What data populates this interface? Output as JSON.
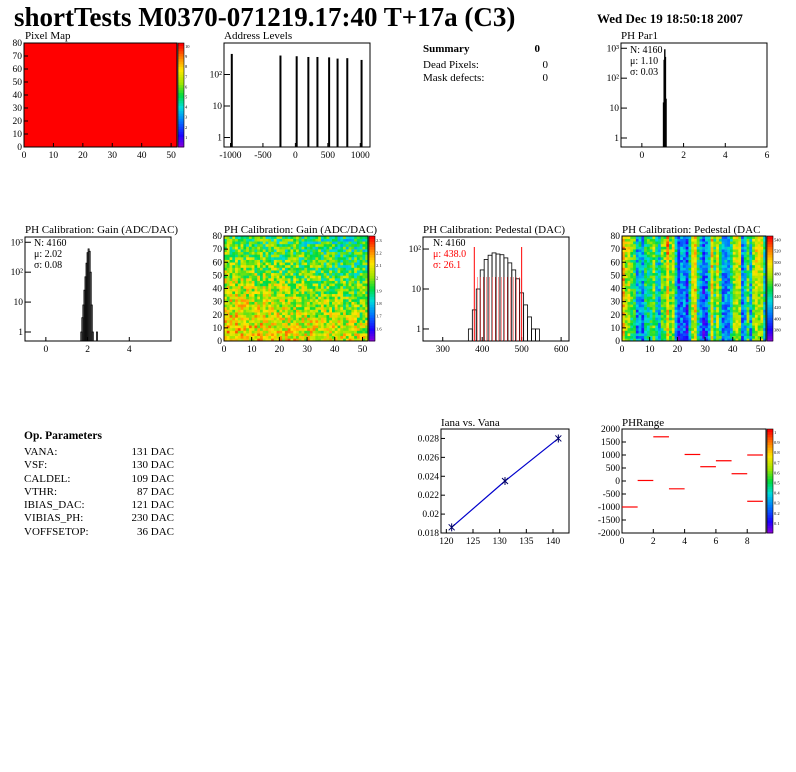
{
  "header": {
    "title": "shortTests M0370-071219.17:40 T+17a (C3)",
    "date": "Wed Dec 19 18:50:18 2007"
  },
  "summary": {
    "title": "Summary",
    "value": "0",
    "rows": [
      {
        "label": "Dead Pixels:",
        "value": "0"
      },
      {
        "label": "Mask defects:",
        "value": "0"
      }
    ]
  },
  "params": {
    "title": "Op. Parameters",
    "rows": [
      {
        "label": "VANA:",
        "value": "131 DAC"
      },
      {
        "label": "VSF:",
        "value": "130 DAC"
      },
      {
        "label": "CALDEL:",
        "value": "109 DAC"
      },
      {
        "label": "VTHR:",
        "value": "87 DAC"
      },
      {
        "label": "IBIAS_DAC:",
        "value": "121 DAC"
      },
      {
        "label": "VIBIAS_PH:",
        "value": "230 DAC"
      },
      {
        "label": "VOFFSETOP:",
        "value": "36 DAC"
      }
    ]
  },
  "colors": {
    "red": "#ff0000",
    "histo_line": "#000000",
    "fit_red": "#ff0000",
    "fit_blue": "#0000cc"
  },
  "chart_data": [
    {
      "id": "pixel-map",
      "type": "heatmap",
      "title": "Pixel Map",
      "xlim": [
        0,
        52
      ],
      "ylim": [
        0,
        80
      ],
      "xticks": [
        "0",
        "10",
        "20",
        "30",
        "40",
        "50"
      ],
      "yticks": [
        "0",
        "10",
        "20",
        "30",
        "40",
        "50",
        "60",
        "70",
        "80"
      ],
      "palette_labels": [
        "1",
        "2",
        "3",
        "4",
        "5",
        "6",
        "7",
        "8",
        "9",
        "10"
      ],
      "fill_value": 10,
      "fill_color": "#ff0000"
    },
    {
      "id": "address-levels",
      "type": "bar",
      "title": "Address Levels",
      "xlim": [
        -1100,
        1150
      ],
      "ylim": [
        0.5,
        1000
      ],
      "yscale": "log",
      "xticks": [
        "-1000",
        "-500",
        "0",
        "500",
        "1000"
      ],
      "yticks": [
        "1",
        "10",
        "10²"
      ],
      "peaks": [
        {
          "x": -980,
          "y": 450
        },
        {
          "x": -230,
          "y": 400
        },
        {
          "x": 20,
          "y": 380
        },
        {
          "x": 200,
          "y": 360
        },
        {
          "x": 340,
          "y": 360
        },
        {
          "x": 520,
          "y": 350
        },
        {
          "x": 650,
          "y": 320
        },
        {
          "x": 800,
          "y": 330
        },
        {
          "x": 1020,
          "y": 290
        }
      ]
    },
    {
      "id": "ph-par1",
      "type": "bar",
      "title": "PH Par1",
      "xlim": [
        -1,
        6
      ],
      "ylim": [
        0.5,
        1500
      ],
      "yscale": "log",
      "xticks": [
        "0",
        "2",
        "4",
        "6"
      ],
      "yticks": [
        "1",
        "10",
        "10²",
        "10³"
      ],
      "stats": {
        "N": "N: 4160",
        "mu": "μ: 1.10",
        "sigma": "σ: 0.03"
      },
      "bins": [
        {
          "x": 1.04,
          "y": 15
        },
        {
          "x": 1.07,
          "y": 400
        },
        {
          "x": 1.1,
          "y": 900
        },
        {
          "x": 1.13,
          "y": 500
        },
        {
          "x": 1.16,
          "y": 20
        }
      ]
    },
    {
      "id": "gain-1d",
      "type": "bar",
      "title": "PH Calibration: Gain (ADC/DAC)",
      "xlim": [
        -1,
        6
      ],
      "ylim": [
        0.5,
        1500
      ],
      "yscale": "log",
      "xticks": [
        "0",
        "2",
        "4"
      ],
      "yticks": [
        "1",
        "10",
        "10²",
        "10³"
      ],
      "stats": {
        "N": "N: 4160",
        "mu": "μ: 2.02",
        "sigma": "σ: 0.08"
      },
      "bins": [
        {
          "x": 1.7,
          "y": 1
        },
        {
          "x": 1.75,
          "y": 3
        },
        {
          "x": 1.8,
          "y": 8
        },
        {
          "x": 1.85,
          "y": 25
        },
        {
          "x": 1.9,
          "y": 70
        },
        {
          "x": 1.95,
          "y": 200
        },
        {
          "x": 2.0,
          "y": 450
        },
        {
          "x": 2.05,
          "y": 600
        },
        {
          "x": 2.1,
          "y": 500
        },
        {
          "x": 2.15,
          "y": 100
        },
        {
          "x": 2.2,
          "y": 8
        },
        {
          "x": 2.25,
          "y": 1
        },
        {
          "x": 2.45,
          "y": 1
        }
      ]
    },
    {
      "id": "gain-map",
      "type": "heatmap",
      "title": "PH Calibration: Gain (ADC/DAC)",
      "xlim": [
        0,
        52
      ],
      "ylim": [
        0,
        80
      ],
      "xticks": [
        "0",
        "10",
        "20",
        "30",
        "40",
        "50"
      ],
      "yticks": [
        "0",
        "10",
        "20",
        "30",
        "40",
        "50",
        "60",
        "70",
        "80"
      ],
      "palette_labels": [
        "1.6",
        "1.7",
        "1.8",
        "1.9",
        "2",
        "2.1",
        "2.2",
        "2.3"
      ]
    },
    {
      "id": "pedestal-1d",
      "type": "bar",
      "title": "PH Calibration: Pedestal (DAC)",
      "xlim": [
        250,
        620
      ],
      "ylim": [
        0.5,
        200
      ],
      "yscale": "log",
      "xticks": [
        "300",
        "400",
        "500",
        "600"
      ],
      "yticks": [
        "1",
        "10",
        "10²"
      ],
      "stats": {
        "N": "N: 4160",
        "mu": "μ: 438.0",
        "sigma": "σ: 26.1"
      },
      "cut_lines": [
        380,
        500
      ],
      "bins": [
        {
          "x": 370,
          "y": 1
        },
        {
          "x": 380,
          "y": 3
        },
        {
          "x": 390,
          "y": 10
        },
        {
          "x": 400,
          "y": 30
        },
        {
          "x": 410,
          "y": 55
        },
        {
          "x": 420,
          "y": 70
        },
        {
          "x": 430,
          "y": 80
        },
        {
          "x": 440,
          "y": 75
        },
        {
          "x": 450,
          "y": 72
        },
        {
          "x": 460,
          "y": 60
        },
        {
          "x": 470,
          "y": 45
        },
        {
          "x": 480,
          "y": 30
        },
        {
          "x": 490,
          "y": 18
        },
        {
          "x": 500,
          "y": 8
        },
        {
          "x": 510,
          "y": 4
        },
        {
          "x": 520,
          "y": 2
        },
        {
          "x": 530,
          "y": 1
        },
        {
          "x": 540,
          "y": 1
        }
      ]
    },
    {
      "id": "pedestal-map",
      "type": "heatmap",
      "title": "PH Calibration: Pedestal (DAC",
      "xlim": [
        0,
        52
      ],
      "ylim": [
        0,
        80
      ],
      "xticks": [
        "0",
        "10",
        "20",
        "30",
        "40",
        "50"
      ],
      "yticks": [
        "0",
        "10",
        "20",
        "30",
        "40",
        "50",
        "60",
        "70",
        "80"
      ],
      "palette_labels": [
        "380",
        "400",
        "420",
        "440",
        "460",
        "480",
        "500",
        "520",
        "540"
      ]
    },
    {
      "id": "iana-vana",
      "type": "line",
      "title": "Iana vs. Vana",
      "xlim": [
        119,
        143
      ],
      "ylim": [
        0.018,
        0.029
      ],
      "xticks": [
        "120",
        "125",
        "130",
        "135",
        "140"
      ],
      "yticks": [
        "0.018",
        "0.02",
        "0.022",
        "0.024",
        "0.026",
        "0.028"
      ],
      "series": [
        {
          "values": [
            [
              121,
              0.0186
            ],
            [
              131,
              0.0235
            ],
            [
              141,
              0.028
            ]
          ]
        }
      ]
    },
    {
      "id": "ph-range",
      "type": "scatter",
      "title": "PHRange",
      "xlim": [
        0,
        9.2
      ],
      "ylim": [
        -2000,
        2000
      ],
      "xticks": [
        "0",
        "2",
        "4",
        "6",
        "8"
      ],
      "yticks": [
        "-2000",
        "-1500",
        "-1000",
        "-500",
        "0",
        "500",
        "1000",
        "1500",
        "2000"
      ],
      "palette_labels": [
        "0.1",
        "0.2",
        "0.3",
        "0.4",
        "0.5",
        "0.6",
        "0.7",
        "0.8",
        "0.9",
        "1"
      ],
      "segments": [
        [
          0.5,
          -1000
        ],
        [
          1.5,
          20
        ],
        [
          2.5,
          1700
        ],
        [
          3.5,
          -300
        ],
        [
          4.5,
          1020
        ],
        [
          5.5,
          550
        ],
        [
          6.5,
          780
        ],
        [
          7.5,
          280
        ],
        [
          8.5,
          1000
        ],
        [
          8.5,
          -780
        ]
      ]
    }
  ]
}
